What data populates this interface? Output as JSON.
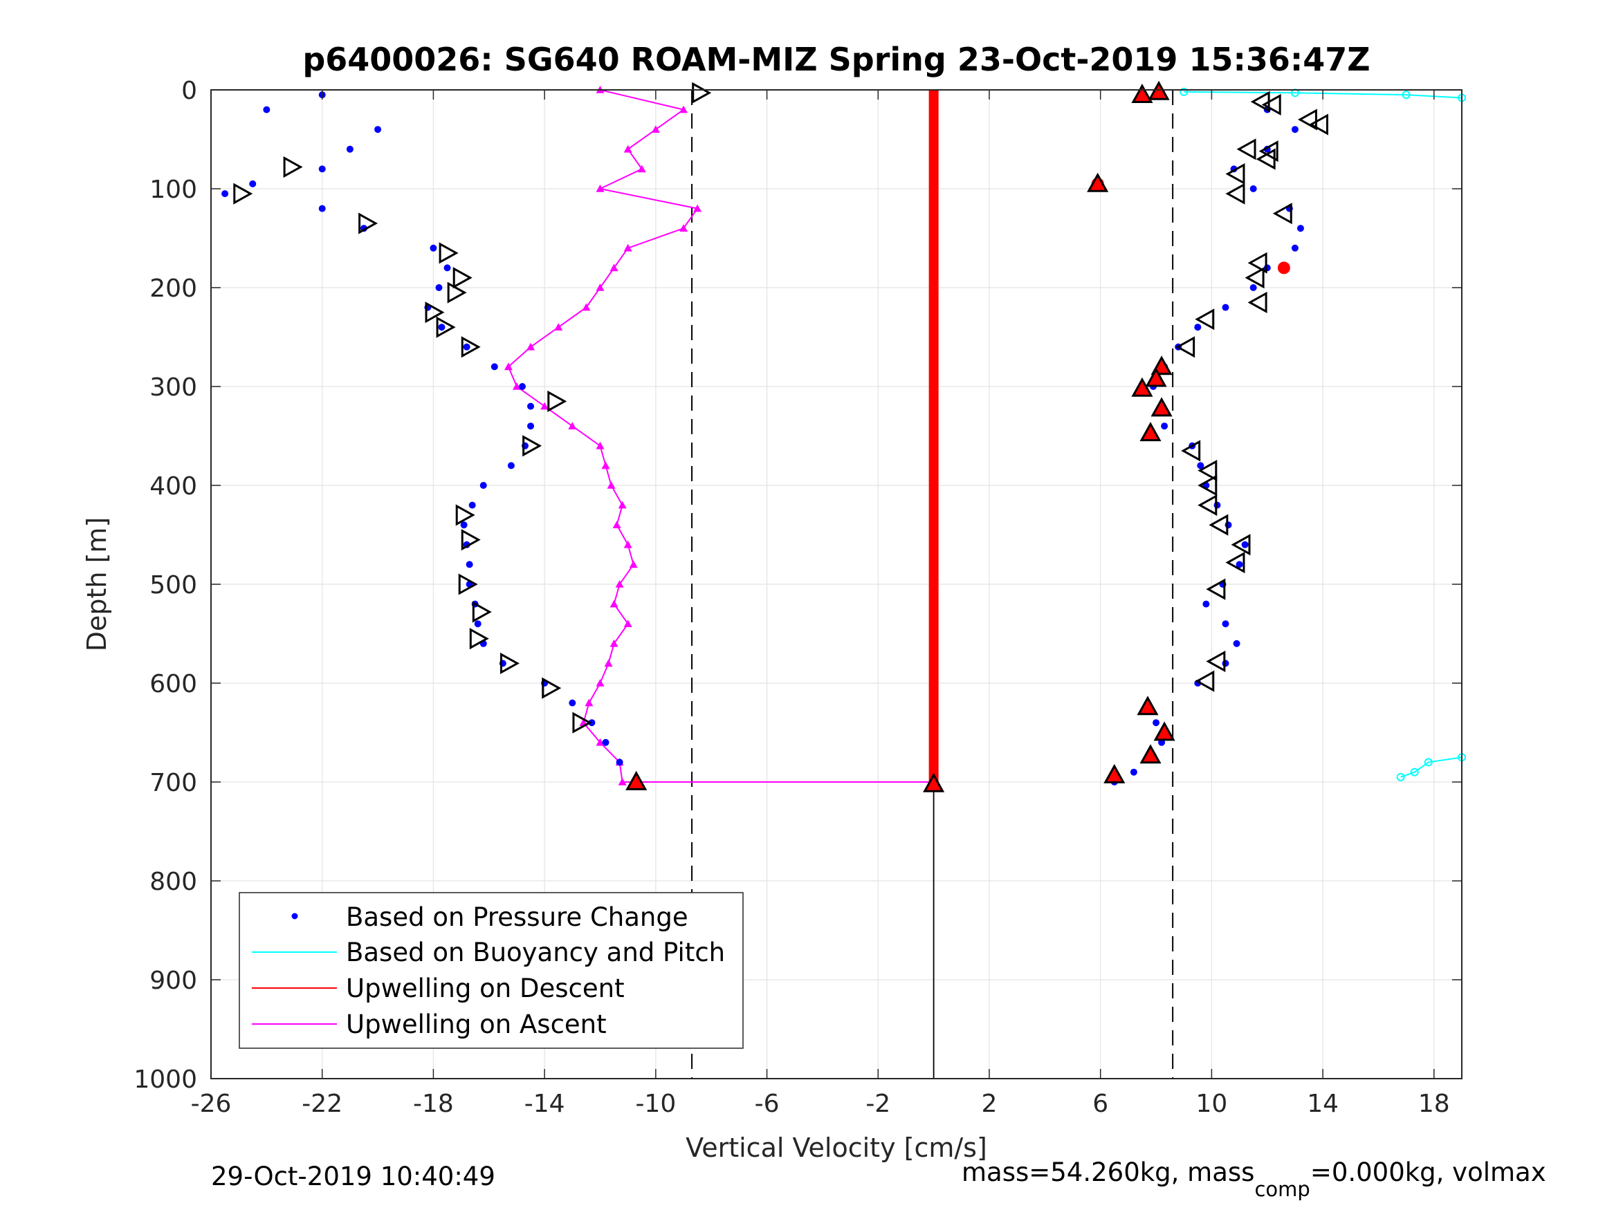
{
  "chart_data": {
    "type": "scatter",
    "title": "p6400026: SG640 ROAM-MIZ Spring 23-Oct-2019 15:36:47Z",
    "xlabel": "Vertical Velocity [cm/s]",
    "ylabel": "Depth [m]",
    "xlim": [
      -26,
      19
    ],
    "ylim": [
      0,
      1000
    ],
    "y_reversed": true,
    "grid": true,
    "legend_position": "bottom-left",
    "x_ticks": [
      -26,
      -22,
      -18,
      -14,
      -10,
      -6,
      -2,
      2,
      6,
      10,
      14,
      18
    ],
    "y_ticks": [
      0,
      100,
      200,
      300,
      400,
      500,
      600,
      700,
      800,
      900,
      1000
    ],
    "x_tick_labels": [
      "-26",
      "-22",
      "-18",
      "-14",
      "-10",
      "-6",
      "-2",
      "2",
      "6",
      "10",
      "14",
      "18"
    ],
    "y_tick_labels": [
      "0",
      "100",
      "200",
      "300",
      "400",
      "500",
      "600",
      "700",
      "800",
      "900",
      "1000"
    ],
    "reference_lines": {
      "dashed_x": [
        -8.7,
        8.6
      ],
      "solid_x": [
        0
      ]
    },
    "series": [
      {
        "name": "Based on Pressure Change",
        "color": "#0000ff",
        "style": "dots",
        "descent": {
          "depth": [
            5,
            20,
            40,
            60,
            80,
            95,
            105,
            120,
            140,
            160,
            180,
            200,
            220,
            240,
            260,
            280,
            300,
            320,
            340,
            360,
            380,
            400,
            420,
            440,
            460,
            480,
            500,
            520,
            540,
            560,
            580,
            600,
            620,
            640,
            660,
            680,
            700
          ],
          "velocity": [
            -22,
            -24,
            -20,
            -21,
            -22,
            -24.5,
            -25.5,
            -22,
            -20.5,
            -18,
            -17.5,
            -17.8,
            -18.2,
            -17.7,
            -16.8,
            -15.8,
            -14.8,
            -14.5,
            -14.5,
            -14.7,
            -15.2,
            -16.2,
            -16.6,
            -16.9,
            -16.8,
            -16.7,
            -16.7,
            -16.5,
            -16.4,
            -16.2,
            -15.5,
            -14,
            -13,
            -12.3,
            -11.8,
            -11.3,
            -10.7
          ]
        },
        "ascent": {
          "depth": [
            700,
            690,
            675,
            660,
            640,
            620,
            600,
            580,
            560,
            540,
            520,
            500,
            480,
            460,
            440,
            420,
            400,
            380,
            360,
            340,
            320,
            300,
            280,
            260,
            240,
            220,
            200,
            180,
            160,
            140,
            120,
            100,
            80,
            60,
            40,
            20,
            5
          ],
          "velocity": [
            6.5,
            7.2,
            7.8,
            8.2,
            8.0,
            7.7,
            9.5,
            10.5,
            10.9,
            10.5,
            9.8,
            10.4,
            11.0,
            11.2,
            10.6,
            10.2,
            9.8,
            9.6,
            9.3,
            8.3,
            8.2,
            7.9,
            8.3,
            8.8,
            9.5,
            10.5,
            11.5,
            12.0,
            13.0,
            13.2,
            12.8,
            11.5,
            10.8,
            12.0,
            13.0,
            12.0,
            8.0
          ]
        }
      },
      {
        "name": "Based on Buoyancy and Pitch",
        "color": "#00ffff",
        "style": "line",
        "segments": [
          {
            "depth": [
              2,
              3,
              5,
              8
            ],
            "velocity": [
              9.0,
              13.0,
              17.0,
              19.0
            ]
          },
          {
            "depth": [
              675,
              680,
              690,
              695
            ],
            "velocity": [
              19.0,
              17.8,
              17.3,
              16.8
            ]
          }
        ]
      },
      {
        "name": "Upwelling on Descent",
        "color": "#ff0000",
        "style": "line",
        "depth_range": [
          0,
          700
        ],
        "velocity": 0
      },
      {
        "name": "Upwelling on Ascent",
        "color": "#ff00ff",
        "style": "triangles-line",
        "depth": [
          0,
          20,
          40,
          60,
          80,
          100,
          120,
          140,
          160,
          180,
          200,
          220,
          240,
          260,
          280,
          300,
          320,
          340,
          360,
          380,
          400,
          420,
          440,
          460,
          480,
          500,
          520,
          540,
          560,
          580,
          600,
          620,
          640,
          660,
          680,
          700
        ],
        "velocity": [
          -12,
          -9,
          -10,
          -11,
          -10.5,
          -12,
          -8.5,
          -9,
          -11,
          -11.5,
          -12,
          -12.5,
          -13.5,
          -14.5,
          -15.3,
          -15,
          -14,
          -13,
          -12,
          -11.8,
          -11.6,
          -11.2,
          -11.4,
          -11.0,
          -10.8,
          -11.3,
          -11.5,
          -11.0,
          -11.5,
          -11.7,
          -12.0,
          -12.4,
          -12.6,
          -12.0,
          -11.3,
          -11.2
        ]
      }
    ],
    "pitch_markers": {
      "open_triangles": [
        {
          "depth": 3,
          "velocity": -8.4
        },
        {
          "depth": 78,
          "velocity": -23.1
        },
        {
          "depth": 105,
          "velocity": -24.9
        },
        {
          "depth": 135,
          "velocity": -20.4
        },
        {
          "depth": 165,
          "velocity": -17.5
        },
        {
          "depth": 190,
          "velocity": -17.0
        },
        {
          "depth": 205,
          "velocity": -17.2
        },
        {
          "depth": 225,
          "velocity": -18.0
        },
        {
          "depth": 240,
          "velocity": -17.6
        },
        {
          "depth": 260,
          "velocity": -16.7
        },
        {
          "depth": 315,
          "velocity": -13.6
        },
        {
          "depth": 360,
          "velocity": -14.5
        },
        {
          "depth": 430,
          "velocity": -16.9
        },
        {
          "depth": 455,
          "velocity": -16.7
        },
        {
          "depth": 500,
          "velocity": -16.8
        },
        {
          "depth": 528,
          "velocity": -16.3
        },
        {
          "depth": 555,
          "velocity": -16.4
        },
        {
          "depth": 580,
          "velocity": -15.3
        },
        {
          "depth": 605,
          "velocity": -13.8
        },
        {
          "depth": 640,
          "velocity": -12.7
        },
        {
          "depth": 12,
          "velocity": 11.8
        },
        {
          "depth": 15,
          "velocity": 12.2
        },
        {
          "depth": 30,
          "velocity": 13.5
        },
        {
          "depth": 35,
          "velocity": 13.9
        },
        {
          "depth": 60,
          "velocity": 11.3
        },
        {
          "depth": 62,
          "velocity": 12.1
        },
        {
          "depth": 70,
          "velocity": 12.0
        },
        {
          "depth": 85,
          "velocity": 10.9
        },
        {
          "depth": 105,
          "velocity": 10.9
        },
        {
          "depth": 125,
          "velocity": 12.6
        },
        {
          "depth": 175,
          "velocity": 11.7
        },
        {
          "depth": 190,
          "velocity": 11.6
        },
        {
          "depth": 215,
          "velocity": 11.7
        },
        {
          "depth": 232,
          "velocity": 9.8
        },
        {
          "depth": 260,
          "velocity": 9.1
        },
        {
          "depth": 365,
          "velocity": 9.3
        },
        {
          "depth": 385,
          "velocity": 9.9
        },
        {
          "depth": 400,
          "velocity": 9.9
        },
        {
          "depth": 420,
          "velocity": 9.9
        },
        {
          "depth": 440,
          "velocity": 10.3
        },
        {
          "depth": 460,
          "velocity": 11.1
        },
        {
          "depth": 478,
          "velocity": 10.9
        },
        {
          "depth": 505,
          "velocity": 10.2
        },
        {
          "depth": 578,
          "velocity": 10.2
        },
        {
          "depth": 598,
          "velocity": 9.8
        }
      ],
      "filled_triangles": [
        {
          "depth": 2,
          "velocity": 8.1
        },
        {
          "depth": 5,
          "velocity": 7.5
        },
        {
          "depth": 95,
          "velocity": 5.9
        },
        {
          "depth": 280,
          "velocity": 8.2
        },
        {
          "depth": 292,
          "velocity": 8.0
        },
        {
          "depth": 302,
          "velocity": 7.5
        },
        {
          "depth": 322,
          "velocity": 8.2
        },
        {
          "depth": 347,
          "velocity": 7.8
        },
        {
          "depth": 624,
          "velocity": 7.7
        },
        {
          "depth": 650,
          "velocity": 8.3
        },
        {
          "depth": 673,
          "velocity": 7.8
        },
        {
          "depth": 693,
          "velocity": 6.5
        },
        {
          "depth": 700,
          "velocity": -10.7
        },
        {
          "depth": 702,
          "velocity": 0
        }
      ],
      "red_dots": [
        {
          "depth": 180,
          "velocity": 12.6
        },
        {
          "depth": 3,
          "velocity": 8.1
        },
        {
          "depth": 95,
          "velocity": 5.9
        }
      ]
    }
  },
  "footer": {
    "timestamp": "29-Oct-2019 10:40:49",
    "mass_prefix": "mass=54.260kg, mass",
    "mass_sub": "comp",
    "mass_suffix": "=0.000kg, volmax"
  }
}
